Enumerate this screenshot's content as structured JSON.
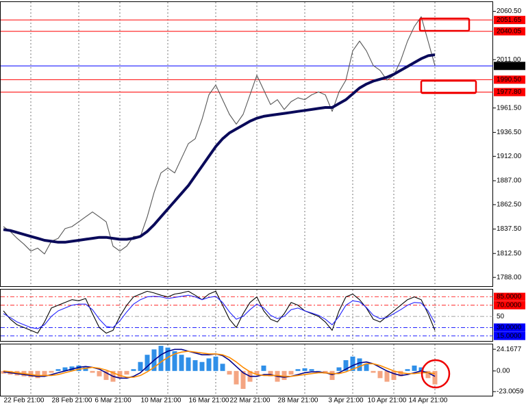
{
  "chart_data": [
    {
      "type": "line",
      "categories": [
        null,
        null,
        null,
        null,
        "22 Feb 21:00",
        null,
        null,
        null,
        null,
        null,
        null,
        "28 Feb 21:00",
        null,
        null,
        null,
        null,
        null,
        "6 Mar 21:00",
        null,
        null,
        null,
        null,
        null,
        null,
        "10 Mar 21:00",
        null,
        null,
        null,
        null,
        null,
        null,
        "16 Mar 21:00",
        null,
        null,
        null,
        null,
        null,
        "22 Mar 21:00",
        null,
        null,
        null,
        null,
        null,
        null,
        "28 Mar 21:00",
        null,
        null,
        null,
        null,
        null,
        null,
        "3 Apr 21:00",
        null,
        null,
        null,
        null,
        null,
        "10 Apr 21:00",
        null,
        null,
        null,
        null,
        null,
        "14 Apr 21:00"
      ],
      "series": [
        {
          "color": "#555555",
          "values": [
            1840,
            1835,
            1828,
            1822,
            1815,
            1818,
            1812,
            1825,
            1828,
            1838,
            1840,
            1845,
            1850,
            1855,
            1850,
            1845,
            1820,
            1815,
            1820,
            1830,
            1830,
            1850,
            1875,
            1895,
            1900,
            1895,
            1910,
            1925,
            1930,
            1950,
            1975,
            1985,
            1970,
            1955,
            1945,
            1955,
            1975,
            1995,
            1980,
            1965,
            1970,
            1960,
            1968,
            1972,
            1970,
            1975,
            1978,
            1975,
            1958,
            1978,
            1990,
            2020,
            2030,
            2020,
            2005,
            2000,
            1990,
            1995,
            2010,
            2030,
            2045,
            2055,
            2030,
            2005
          ]
        },
        {
          "color": "#0a0a5a",
          "values": [
            1837,
            1836,
            1834,
            1832,
            1830,
            1828,
            1826,
            1825,
            1824,
            1824,
            1825,
            1826,
            1827,
            1828,
            1829,
            1829,
            1828,
            1827,
            1827,
            1828,
            1830,
            1835,
            1842,
            1850,
            1858,
            1866,
            1874,
            1882,
            1892,
            1902,
            1912,
            1922,
            1930,
            1936,
            1940,
            1944,
            1948,
            1951,
            1953,
            1954,
            1955,
            1956,
            1957,
            1958,
            1959,
            1960,
            1961,
            1962,
            1962,
            1966,
            1970,
            1976,
            1982,
            1986,
            1989,
            1991,
            1993,
            1996,
            2000,
            2004,
            2008,
            2012,
            2015,
            2016
          ]
        }
      ],
      "ylim": [
        1779,
        2070
      ],
      "yticks": [
        {
          "value": 2060.5,
          "label": "2060.50"
        },
        {
          "value": 2011,
          "label": "2011.00"
        },
        {
          "value": 1961.5,
          "label": "1961.50"
        },
        {
          "value": 1936.5,
          "label": "1936.50"
        },
        {
          "value": 1912,
          "label": "1912.00"
        },
        {
          "value": 1887,
          "label": "1887.00"
        },
        {
          "value": 1862.5,
          "label": "1862.50"
        },
        {
          "value": 1837.5,
          "label": "1837.50"
        },
        {
          "value": 1812.5,
          "label": "1812.50"
        },
        {
          "value": 1788,
          "label": "1788.00"
        }
      ],
      "levels": {
        "values": [
          2051.65,
          2040.05,
          2004.59,
          1990.5,
          1977.8
        ],
        "value_labels": [
          "2051.65",
          "2040.05",
          "2004.59",
          "1990.50",
          "1977.80"
        ],
        "colors": [
          "#ff0000",
          "#ff0000",
          "#0000ff",
          "#ff0000",
          "#ff0000"
        ],
        "label_colors": [
          "#ff0000",
          "#ff0000",
          "#000000",
          "#ff0000",
          "#ff0000"
        ]
      }
    },
    {
      "type": "line",
      "series": [
        {
          "color": "#000000",
          "values": [
            60,
            45,
            35,
            30,
            25,
            20,
            40,
            65,
            70,
            75,
            80,
            78,
            82,
            55,
            30,
            20,
            25,
            50,
            70,
            85,
            90,
            95,
            92,
            88,
            85,
            90,
            92,
            95,
            88,
            80,
            90,
            95,
            70,
            45,
            30,
            55,
            75,
            85,
            60,
            45,
            40,
            55,
            75,
            70,
            60,
            55,
            50,
            40,
            25,
            60,
            85,
            90,
            80,
            65,
            45,
            40,
            50,
            60,
            70,
            80,
            85,
            80,
            55,
            25
          ]
        },
        {
          "color": "#2020ff",
          "values": [
            55,
            48,
            40,
            35,
            30,
            28,
            35,
            50,
            60,
            65,
            70,
            72,
            72,
            62,
            45,
            32,
            30,
            42,
            58,
            72,
            80,
            85,
            86,
            85,
            82,
            84,
            86,
            88,
            85,
            80,
            84,
            86,
            75,
            58,
            45,
            50,
            62,
            72,
            65,
            52,
            46,
            50,
            62,
            65,
            60,
            56,
            52,
            45,
            35,
            50,
            70,
            78,
            76,
            66,
            52,
            46,
            48,
            55,
            62,
            70,
            75,
            74,
            60,
            38
          ]
        }
      ],
      "ylim": [
        6,
        98
      ],
      "yticks": [
        {
          "value": 85,
          "label": "85.0000"
        },
        {
          "value": 70,
          "label": "70.0000"
        },
        50,
        {
          "value": 30,
          "label": "30.0000"
        },
        {
          "value": 15,
          "label": "15.0000"
        }
      ],
      "ytick_colors": [
        "#ff0000",
        "#ff0000",
        "#808080",
        "#0000ff",
        "#0000ff"
      ],
      "ytick_box": [
        true,
        true,
        false,
        true,
        true
      ]
    },
    {
      "type": "bar",
      "values": [
        -3,
        -4,
        -5,
        -6,
        -7,
        -8,
        -6,
        -2,
        2,
        4,
        5,
        6,
        4,
        -2,
        -6,
        -10,
        -12,
        -8,
        -4,
        2,
        10,
        18,
        24,
        28,
        26,
        22,
        18,
        15,
        12,
        10,
        14,
        16,
        8,
        -4,
        -15,
        -20,
        -12,
        -4,
        6,
        -6,
        -12,
        -10,
        -4,
        2,
        3,
        2,
        0,
        -3,
        -10,
        4,
        12,
        16,
        14,
        8,
        -2,
        -8,
        -12,
        -10,
        -6,
        2,
        6,
        4,
        -8,
        -15
      ],
      "color": "#2f8fe8",
      "negative_color": "#f4a582",
      "series": [
        {
          "color": "#00008b",
          "values": [
            -1,
            -2,
            -3,
            -4,
            -5,
            -6,
            -6,
            -4,
            -2,
            0,
            2,
            4,
            5,
            4,
            2,
            -2,
            -6,
            -8,
            -8,
            -6,
            -2,
            5,
            12,
            18,
            22,
            24,
            24,
            22,
            20,
            18,
            18,
            19,
            17,
            12,
            5,
            -2,
            -6,
            -6,
            -4,
            -4,
            -6,
            -7,
            -6,
            -4,
            -2,
            -1,
            -1,
            -2,
            -4,
            -2,
            2,
            6,
            9,
            10,
            8,
            4,
            0,
            -3,
            -5,
            -4,
            -2,
            0,
            -2,
            -6
          ]
        },
        {
          "color": "#ff8c00",
          "values": [
            0,
            -1,
            -2,
            -3,
            -4,
            -5,
            -5,
            -5,
            -4,
            -2,
            0,
            2,
            3,
            4,
            3,
            1,
            -2,
            -5,
            -7,
            -7,
            -5,
            -1,
            4,
            10,
            15,
            19,
            21,
            22,
            21,
            20,
            19,
            19,
            18,
            15,
            10,
            4,
            -1,
            -4,
            -5,
            -5,
            -5,
            -6,
            -6,
            -5,
            -4,
            -3,
            -2,
            -2,
            -3,
            -3,
            -1,
            2,
            5,
            8,
            8,
            6,
            3,
            0,
            -2,
            -3,
            -3,
            -2,
            -2,
            -3
          ]
        }
      ],
      "ylim": [
        -27.6,
        29.6
      ],
      "yticks": [
        24.1677,
        {
          "value": 0,
          "label": "0.00"
        },
        -23.0059
      ]
    }
  ]
}
